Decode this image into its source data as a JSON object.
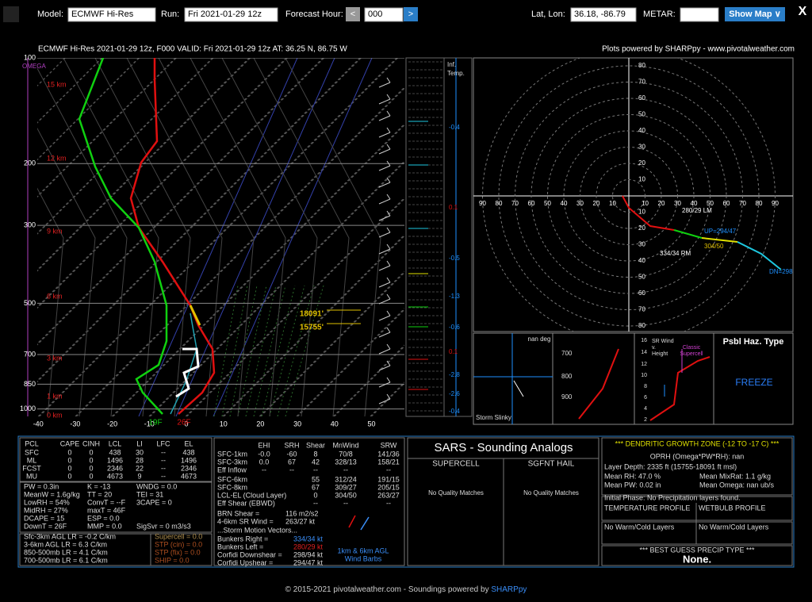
{
  "toolbar": {
    "model_label": "Model:",
    "model": "ECMWF Hi-Res",
    "run_label": "Run:",
    "run": "Fri 2021-01-29 12z",
    "hour_label": "Forecast Hour:",
    "prev": "<",
    "hour": "000",
    "next": ">",
    "latlon_label": "Lat, Lon:",
    "latlon": "36.18, -86.79",
    "metar_label": "METAR:",
    "show_map": "Show Map ∨",
    "close": "X"
  },
  "skewt": {
    "title": "ECMWF Hi-Res 2021-01-29 12z, F000  VALID: Fri 2021-01-29 12z  AT: 36.25 N, 86.75 W",
    "credit": "Plots powered by SHARPpy - www.pivotalweather.com",
    "omega": "OMEGA",
    "pressures": [
      100,
      200,
      300,
      500,
      700,
      850,
      1000
    ],
    "heights": [
      "15 km",
      "12 km",
      "9 km",
      "6 km",
      "3 km",
      "1 km",
      "0 km"
    ],
    "temps": [
      -40,
      -30,
      -20,
      -10,
      0,
      10,
      20,
      30,
      40,
      50
    ],
    "levels": [
      "18091'",
      "15755'"
    ],
    "sfc_td": "19F",
    "sfc_t": "26F"
  },
  "inferred": {
    "label": [
      "Inf.",
      "Temp."
    ],
    "values": [
      "-0.4",
      "0.1",
      "-0.5",
      "-1.3",
      "-0.6",
      "0.1",
      "-2.8",
      "-2.6",
      "-0.4"
    ]
  },
  "hodograph": {
    "rings": [
      10,
      20,
      30,
      40,
      50,
      60,
      70,
      80,
      90
    ],
    "labels": [
      "280/29 LM",
      "UP=294/47",
      "334/34 RM",
      "304/50",
      "DN=298"
    ]
  },
  "panels": {
    "slinky_title": "nan deg",
    "slinky": "Storm Slinky",
    "pressures": [
      "700",
      "800",
      "900"
    ],
    "srwind_title": [
      "SR Wind",
      "v.",
      "Height"
    ],
    "supercell": [
      "Classic",
      "Supercell"
    ],
    "srwind_heights": [
      "16",
      "14",
      "12",
      "10",
      "8",
      "6",
      "4",
      "2"
    ],
    "haz_title": "Psbl Haz. Type",
    "haz": "FREEZE"
  },
  "thermo": {
    "header": [
      "PCL",
      "CAPE",
      "CINH",
      "LCL",
      "LI",
      "LFC",
      "EL"
    ],
    "rows": [
      [
        "SFC",
        "0",
        "0",
        "438",
        "30",
        "--",
        "438"
      ],
      [
        "ML",
        "0",
        "0",
        "1496",
        "28",
        "--",
        "1496"
      ],
      [
        "FCST",
        "0",
        "0",
        "2346",
        "22",
        "--",
        "2346"
      ],
      [
        "MU",
        "0",
        "0",
        "4673",
        "9",
        "--",
        "4673"
      ]
    ],
    "indices": [
      [
        "PW = 0.3in",
        "K = -13",
        "WNDG = 0.0"
      ],
      [
        "MeanW = 1.6g/kg",
        "TT = 20",
        "TEI = 31"
      ],
      [
        "LowRH = 54%",
        "ConvT = --F",
        "3CAPE = 0"
      ],
      [
        "MidRH = 27%",
        "maxT = 46F"
      ],
      [
        "DCAPE = 15",
        "ESP = 0.0"
      ],
      [
        "DownT = 26F",
        "MMP = 0.0",
        "SigSvr = 0 m3/s3"
      ]
    ],
    "lapse": [
      "Sfc-3km AGL LR = -0.2 C/km",
      "3-6km AGL LR = 6.3 C/km",
      "850-500mb LR = 4.1 C/km",
      "700-500mb LR = 6.1 C/km"
    ],
    "severe": [
      "Supercell = 0.0",
      "STP (cin) = 0.0",
      "STP (fix) = 0.0",
      "SHIP = 0.0"
    ]
  },
  "kinematic": {
    "header": [
      "EHI",
      "SRH",
      "Shear",
      "MnWind",
      "SRW"
    ],
    "rows": [
      [
        "SFC-1km",
        "-0.0",
        "-60",
        "8",
        "70/8",
        "141/36"
      ],
      [
        "SFC-3km",
        "0.0",
        "67",
        "42",
        "328/13",
        "158/21"
      ],
      [
        "Eff Inflow",
        "--",
        "--",
        "--",
        "--",
        "--"
      ],
      [
        "SFC-6km",
        "55",
        "312/24",
        "191/15"
      ],
      [
        "SFC-8km",
        "67",
        "309/27",
        "205/15"
      ],
      [
        "LCL-EL (Cloud Layer)",
        "0",
        "304/50",
        "263/27"
      ],
      [
        "Eff Shear (EBWD)",
        "--",
        "--",
        "--"
      ]
    ],
    "params": [
      [
        "BRN Shear = ",
        "116 m2/s2"
      ],
      [
        "4-6km SR Wind = ",
        "263/27 kt"
      ]
    ],
    "motion_title": "...Storm Motion Vectors...",
    "motion": [
      [
        "Bunkers Right = ",
        "334/34 kt"
      ],
      [
        "Bunkers Left = ",
        "280/29 kt"
      ],
      [
        "Corfidi Downshear = ",
        "298/94 kt"
      ],
      [
        "Corfidi Upshear = ",
        "294/47 kt"
      ]
    ],
    "barbs": [
      "1km & 6km AGL",
      "Wind Barbs"
    ]
  },
  "sars": {
    "title": "SARS - Sounding Analogs",
    "supercell": "SUPERCELL",
    "hail": "SGFNT HAIL",
    "supercell_result": "No Quality Matches",
    "hail_result": "No Quality Matches"
  },
  "winter": {
    "title": "*** DENDRITIC GROWTH ZONE (-12 TO -17 C) ***",
    "oprh": "OPRH (Omega*PW*RH): nan",
    "depth": "Layer Depth: 2335 ft (15755-18091 ft msl)",
    "mean_rh": "Mean RH: 47.0 %",
    "mean_mixrat": "Mean MixRat: 1.1 g/kg",
    "mean_pw": "Mean PW: 0.02 in",
    "mean_omega": "Mean Omega: nan ub/s",
    "phase": "Initial Phase:  No Precipitation layers found.",
    "temp_profile": "TEMPERATURE PROFILE",
    "wetbulb_profile": "WETBULB PROFILE",
    "temp_result": "No Warm/Cold Layers",
    "wetbulb_result": "No Warm/Cold Layers",
    "precip_title": "*** BEST GUESS PRECIP TYPE ***",
    "precip": "None."
  },
  "footer": {
    "text": "© 2015-2021 pivotalweather.com - Soundings powered by ",
    "link": "SHARPpy"
  }
}
